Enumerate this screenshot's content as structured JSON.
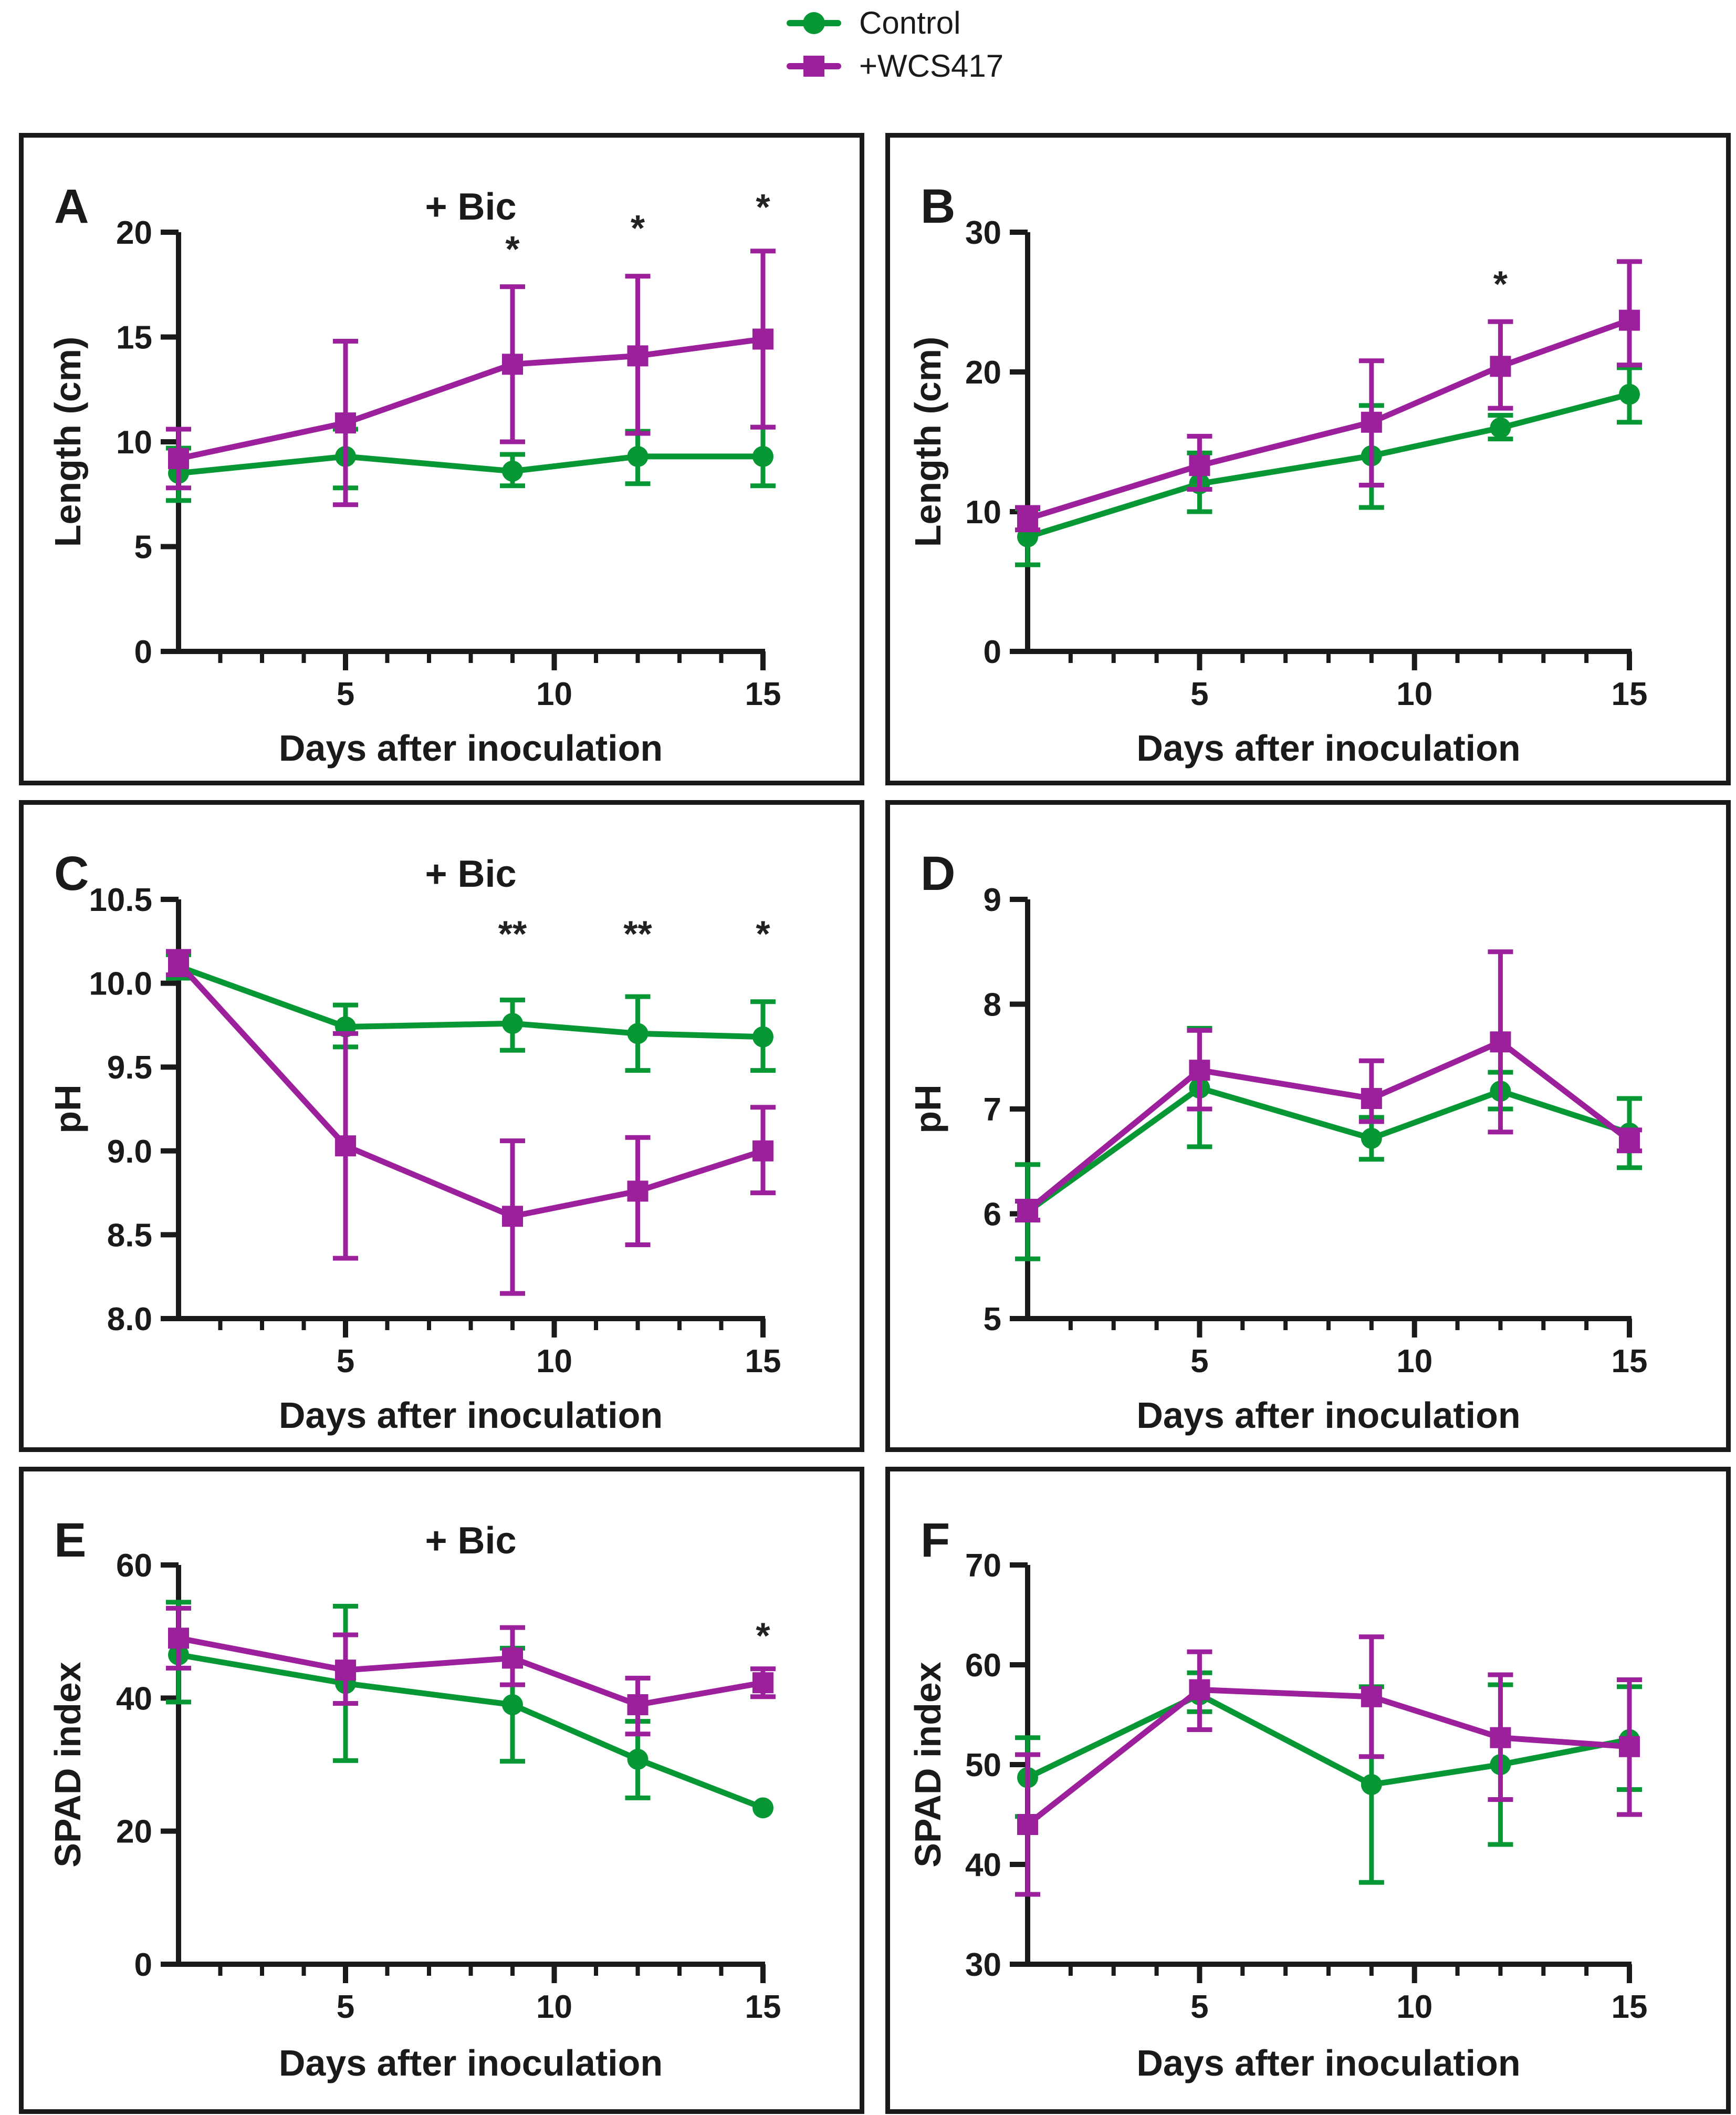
{
  "figure": {
    "legend": [
      {
        "label": "Control",
        "series": "control",
        "marker": "circle"
      },
      {
        "label": "+WCS417",
        "series": "wcs417",
        "marker": "square"
      }
    ],
    "colors": {
      "control": "#089735",
      "wcs417": "#9C1F9C",
      "axis": "#1a1a1a",
      "text": "#1a1a1a",
      "star": "#222222"
    }
  },
  "chart_data": [
    {
      "panel": "A",
      "title": "+ Bic",
      "type": "line",
      "xlabel": "Days after inoculation",
      "ylabel": "Length (cm)",
      "xlim": [
        1,
        15
      ],
      "ylim": [
        0,
        20
      ],
      "xticks": [
        5,
        10,
        15
      ],
      "xticks_minor": [
        2,
        3,
        4,
        6,
        7,
        8,
        9,
        11,
        12,
        13,
        14
      ],
      "yticks": [
        0,
        5,
        10,
        15,
        20
      ],
      "ydecimals": 0,
      "x": [
        1,
        5,
        9,
        12,
        15
      ],
      "series": [
        {
          "name": "Control",
          "key": "control",
          "marker": "circle",
          "values": [
            8.5,
            9.3,
            8.6,
            9.3,
            9.3
          ],
          "err_lo": [
            7.2,
            7.8,
            7.9,
            8.0,
            7.9
          ],
          "err_hi": [
            9.7,
            10.6,
            9.4,
            10.5,
            10.7
          ]
        },
        {
          "name": "+WCS417",
          "key": "wcs417",
          "marker": "square",
          "values": [
            9.2,
            10.9,
            13.7,
            14.1,
            14.9
          ],
          "err_lo": [
            7.8,
            7.0,
            10.0,
            10.4,
            10.7
          ],
          "err_hi": [
            10.6,
            14.8,
            17.4,
            17.9,
            19.1
          ]
        }
      ],
      "annotations": [
        {
          "x": 9,
          "y": 18.6,
          "text": "*"
        },
        {
          "x": 12,
          "y": 19.6,
          "text": "*"
        },
        {
          "x": 15,
          "y": 20.6,
          "text": "*"
        }
      ]
    },
    {
      "panel": "B",
      "title": "",
      "type": "line",
      "xlabel": "Days after inoculation",
      "ylabel": "Length (cm)",
      "xlim": [
        1,
        15
      ],
      "ylim": [
        0,
        30
      ],
      "xticks": [
        5,
        10,
        15
      ],
      "xticks_minor": [
        2,
        3,
        4,
        6,
        7,
        8,
        9,
        11,
        12,
        13,
        14
      ],
      "yticks": [
        0,
        10,
        20,
        30
      ],
      "ydecimals": 0,
      "x": [
        1,
        5,
        9,
        12,
        15
      ],
      "series": [
        {
          "name": "Control",
          "key": "control",
          "marker": "circle",
          "values": [
            8.2,
            12.0,
            14.0,
            16.0,
            18.4
          ],
          "err_lo": [
            6.2,
            10.0,
            10.3,
            15.2,
            16.4
          ],
          "err_hi": [
            10.2,
            14.2,
            17.6,
            16.9,
            20.3
          ]
        },
        {
          "name": "+WCS417",
          "key": "wcs417",
          "marker": "square",
          "values": [
            9.5,
            13.3,
            16.4,
            20.4,
            23.7
          ],
          "err_lo": [
            8.7,
            11.6,
            11.9,
            17.4,
            20.5
          ],
          "err_hi": [
            10.3,
            15.4,
            20.8,
            23.6,
            27.9
          ]
        }
      ],
      "annotations": [
        {
          "x": 12,
          "y": 25.4,
          "text": "*"
        }
      ]
    },
    {
      "panel": "C",
      "title": "+ Bic",
      "type": "line",
      "xlabel": "Days after inoculation",
      "ylabel": "pH",
      "xlim": [
        1,
        15
      ],
      "ylim": [
        8.0,
        10.5
      ],
      "xticks": [
        5,
        10,
        15
      ],
      "xticks_minor": [
        2,
        3,
        4,
        6,
        7,
        8,
        9,
        11,
        12,
        13,
        14
      ],
      "yticks": [
        8.0,
        8.5,
        9.0,
        9.5,
        10.0,
        10.5
      ],
      "ydecimals": 1,
      "x": [
        1,
        5,
        9,
        12,
        15
      ],
      "series": [
        {
          "name": "Control",
          "key": "control",
          "marker": "circle",
          "values": [
            10.1,
            9.74,
            9.76,
            9.7,
            9.68
          ],
          "err_lo": [
            10.03,
            9.62,
            9.6,
            9.48,
            9.48
          ],
          "err_hi": [
            10.17,
            9.87,
            9.9,
            9.92,
            9.89
          ]
        },
        {
          "name": "+WCS417",
          "key": "wcs417",
          "marker": "square",
          "values": [
            10.12,
            9.03,
            8.61,
            8.76,
            9.0
          ],
          "err_lo": [
            10.05,
            8.36,
            8.15,
            8.44,
            8.75
          ],
          "err_hi": [
            10.19,
            9.7,
            9.06,
            9.08,
            9.26
          ]
        }
      ],
      "annotations": [
        {
          "x": 9,
          "y": 10.22,
          "text": "**"
        },
        {
          "x": 12,
          "y": 10.22,
          "text": "**"
        },
        {
          "x": 15,
          "y": 10.22,
          "text": "*"
        }
      ]
    },
    {
      "panel": "D",
      "title": "",
      "type": "line",
      "xlabel": "Days after inoculation",
      "ylabel": "pH",
      "xlim": [
        1,
        15
      ],
      "ylim": [
        5,
        9
      ],
      "xticks": [
        5,
        10,
        15
      ],
      "xticks_minor": [
        2,
        3,
        4,
        6,
        7,
        8,
        9,
        11,
        12,
        13,
        14
      ],
      "yticks": [
        5,
        6,
        7,
        8,
        9
      ],
      "ydecimals": 0,
      "x": [
        1,
        5,
        9,
        12,
        15
      ],
      "series": [
        {
          "name": "Control",
          "key": "control",
          "marker": "circle",
          "values": [
            6.02,
            7.2,
            6.72,
            7.17,
            6.77
          ],
          "err_lo": [
            5.57,
            6.64,
            6.52,
            7.0,
            6.44
          ],
          "err_hi": [
            6.47,
            7.77,
            6.92,
            7.35,
            7.1
          ]
        },
        {
          "name": "+WCS417",
          "key": "wcs417",
          "marker": "square",
          "values": [
            6.03,
            7.37,
            7.1,
            7.64,
            6.7
          ],
          "err_lo": [
            5.94,
            7.0,
            6.88,
            6.78,
            6.6
          ],
          "err_hi": [
            6.12,
            7.75,
            7.46,
            8.5,
            6.8
          ]
        }
      ],
      "annotations": []
    },
    {
      "panel": "E",
      "title": "+ Bic",
      "type": "line",
      "xlabel": "Days after inoculation",
      "ylabel": "SPAD index",
      "xlim": [
        1,
        15
      ],
      "ylim": [
        0,
        60
      ],
      "xticks": [
        5,
        10,
        15
      ],
      "xticks_minor": [
        2,
        3,
        4,
        6,
        7,
        8,
        9,
        11,
        12,
        13,
        14
      ],
      "yticks": [
        0,
        20,
        40,
        60
      ],
      "ydecimals": 0,
      "x": [
        1,
        5,
        9,
        12,
        15
      ],
      "series": [
        {
          "name": "Control",
          "key": "control",
          "marker": "circle",
          "values": [
            46.5,
            42.2,
            39.0,
            30.8,
            23.5
          ],
          "err_lo": [
            39.4,
            30.6,
            30.5,
            25.0,
            23.5
          ],
          "err_hi": [
            54.4,
            53.8,
            47.5,
            36.5,
            23.5
          ]
        },
        {
          "name": "+WCS417",
          "key": "wcs417",
          "marker": "square",
          "values": [
            49.0,
            44.2,
            46.0,
            39.0,
            42.3
          ],
          "err_lo": [
            44.5,
            39.2,
            42.0,
            34.6,
            40.2
          ],
          "err_hi": [
            53.5,
            49.5,
            50.6,
            43.0,
            44.4
          ]
        }
      ],
      "annotations": [
        {
          "x": 15,
          "y": 47.5,
          "text": "*"
        }
      ]
    },
    {
      "panel": "F",
      "title": "",
      "type": "line",
      "xlabel": "Days after inoculation",
      "ylabel": "SPAD index",
      "xlim": [
        1,
        15
      ],
      "ylim": [
        30,
        70
      ],
      "xticks": [
        5,
        10,
        15
      ],
      "xticks_minor": [
        2,
        3,
        4,
        6,
        7,
        8,
        9,
        11,
        12,
        13,
        14
      ],
      "yticks": [
        30,
        40,
        50,
        60,
        70
      ],
      "ydecimals": 0,
      "x": [
        1,
        5,
        9,
        12,
        15
      ],
      "series": [
        {
          "name": "Control",
          "key": "control",
          "marker": "circle",
          "values": [
            48.7,
            57.0,
            48.0,
            50.0,
            52.5
          ],
          "err_lo": [
            44.8,
            55.3,
            38.2,
            42.0,
            47.5
          ],
          "err_hi": [
            52.7,
            59.2,
            57.8,
            58.0,
            57.8
          ]
        },
        {
          "name": "+WCS417",
          "key": "wcs417",
          "marker": "square",
          "values": [
            44.0,
            57.5,
            56.8,
            52.7,
            51.8
          ],
          "err_lo": [
            37.0,
            53.5,
            50.8,
            46.5,
            45.0
          ],
          "err_hi": [
            51.0,
            61.3,
            62.8,
            59.0,
            58.5
          ]
        }
      ],
      "annotations": []
    }
  ]
}
